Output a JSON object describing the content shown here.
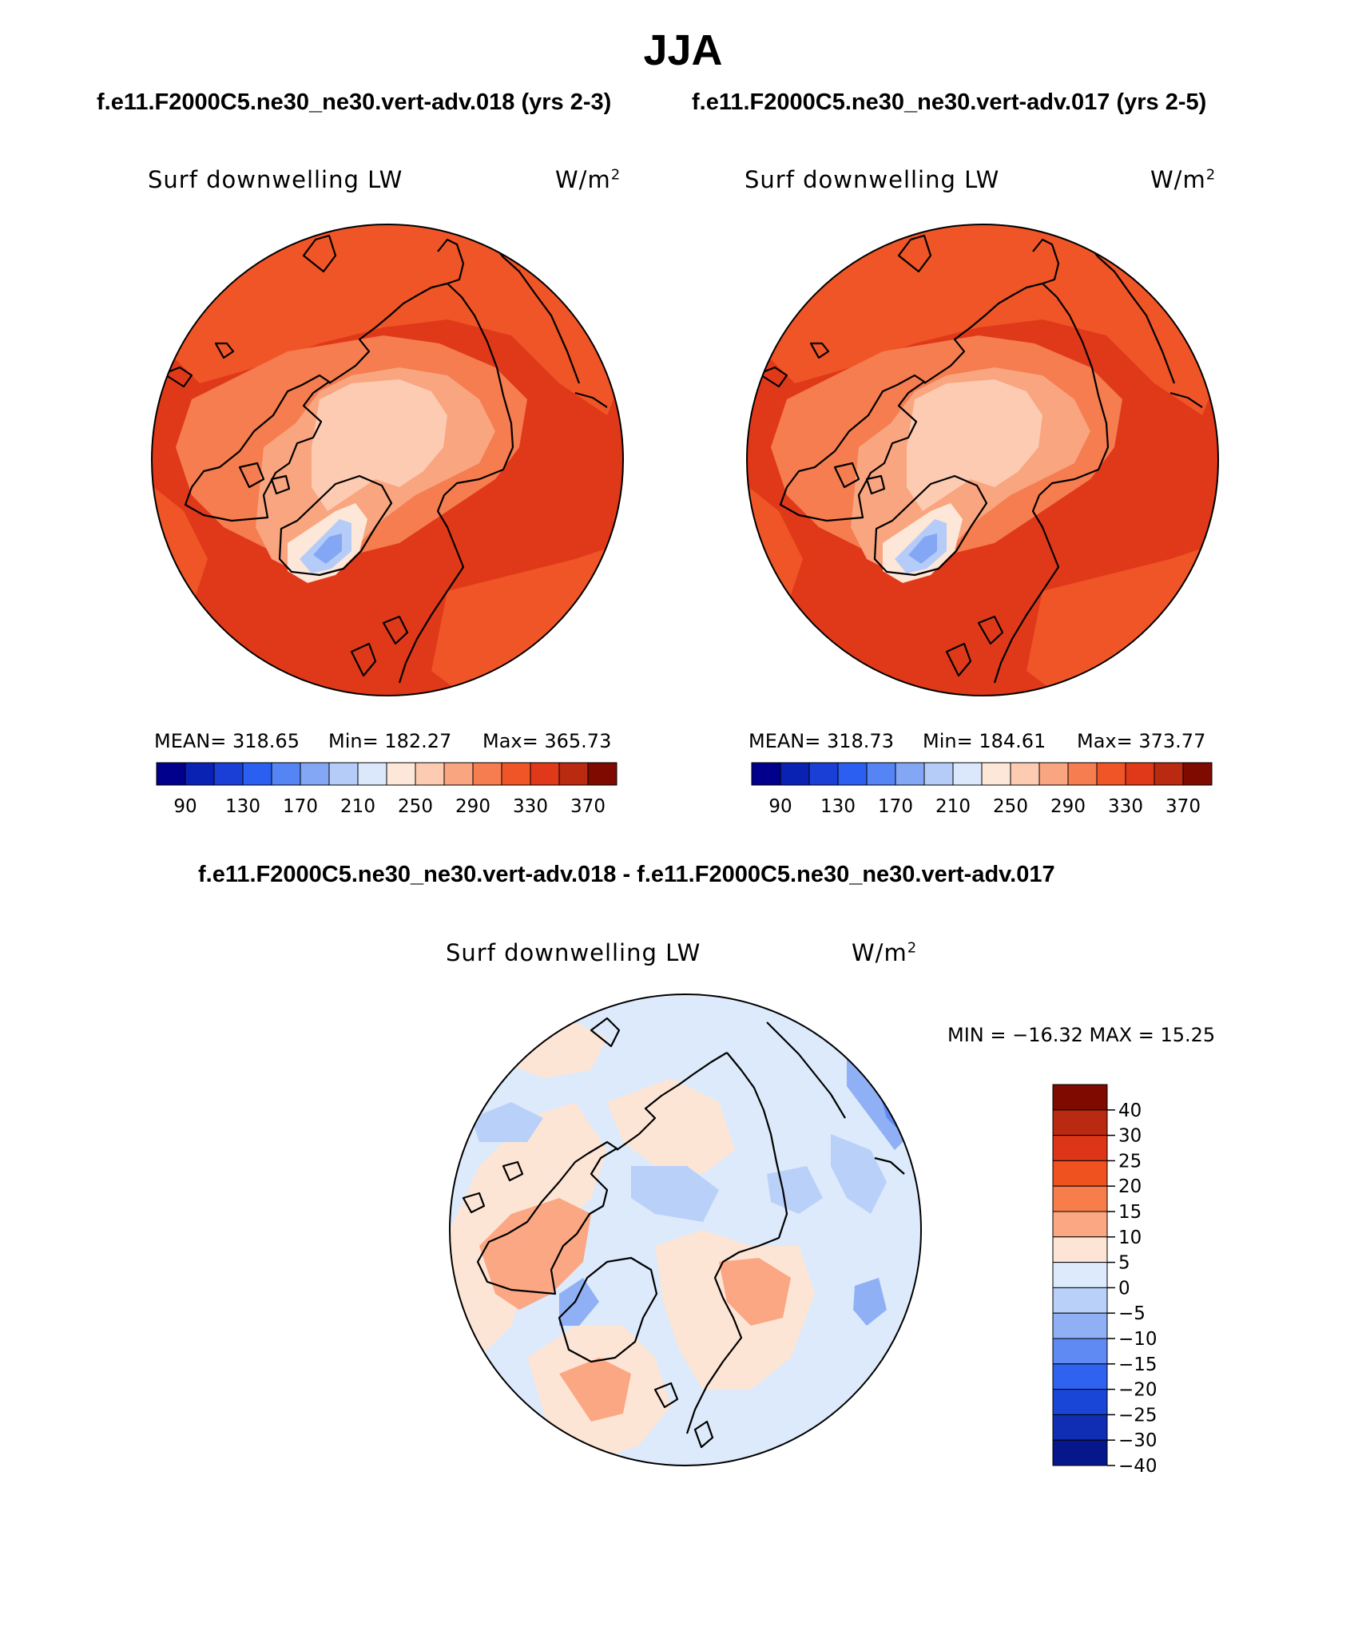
{
  "page": {
    "season": "JJA",
    "case_left": "f.e11.F2000C5.ne30_ne30.vert-adv.018 (yrs 2-3)",
    "case_right": "f.e11.F2000C5.ne30_ne30.vert-adv.017 (yrs 2-5)",
    "diff_title": "f.e11.F2000C5.ne30_ne30.vert-adv.018 - f.e11.F2000C5.ne30_ne30.vert-adv.017"
  },
  "panels": [
    {
      "variable": "Surf downwelling LW",
      "units_base": "W/m",
      "units_exp": "2",
      "mean_label": "MEAN= 318.65",
      "min_label": "Min= 182.27",
      "max_label": "Max= 365.73"
    },
    {
      "variable": "Surf downwelling LW",
      "units_base": "W/m",
      "units_exp": "2",
      "mean_label": "MEAN= 318.73",
      "min_label": "Min= 184.61",
      "max_label": "Max= 373.77"
    }
  ],
  "diff_panel": {
    "variable": "Surf downwelling LW",
    "units_base": "W/m",
    "units_exp": "2",
    "minmax_label": "MIN = −16.32 MAX =   15.25"
  },
  "abs_colorbar": {
    "colors": [
      "#00008c",
      "#0a22b4",
      "#1a3fd6",
      "#2b5ff2",
      "#5584f4",
      "#84a7f5",
      "#b5ccf8",
      "#dbe8fb",
      "#fde7d8",
      "#fccbb2",
      "#f9a57f",
      "#f57d4f",
      "#ef5526",
      "#e0391a",
      "#b92a10",
      "#7e0a00"
    ],
    "tick_labels": [
      "90",
      "130",
      "170",
      "210",
      "250",
      "290",
      "330",
      "370"
    ]
  },
  "diff_colorbar": {
    "colors": [
      "#7e0a00",
      "#b92a10",
      "#dc3517",
      "#f0521f",
      "#f77d4a",
      "#fba783",
      "#fde5d6",
      "#dceafb",
      "#b9d0f8",
      "#8fb0f5",
      "#5f8af3",
      "#2f62ef",
      "#1a46d8",
      "#0f2eb3",
      "#05178a"
    ],
    "tick_labels": [
      "40",
      "30",
      "25",
      "20",
      "15",
      "10",
      "5",
      "0",
      "−5",
      "−10",
      "−15",
      "−20",
      "−25",
      "−30",
      "−40"
    ]
  }
}
